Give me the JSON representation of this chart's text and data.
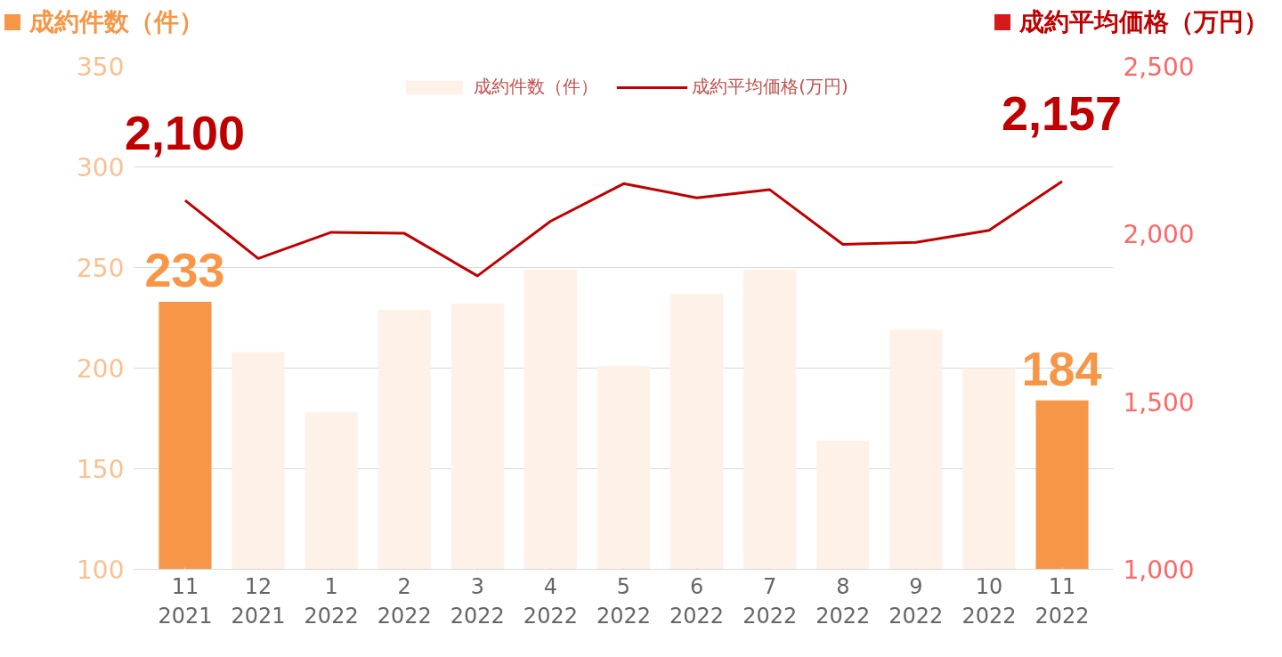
{
  "chart_data": {
    "type": "bar",
    "ylabel": "成約件数（件）",
    "y2label": "成約平均価格（万円）",
    "categories": [
      "11\n2021",
      "12\n2021",
      "1\n2022",
      "2\n2022",
      "3\n2022",
      "4\n2022",
      "5\n2022",
      "6\n2022",
      "7\n2022",
      "8\n2022",
      "9\n2022",
      "10\n2022",
      "11\n2022"
    ],
    "ylim": [
      100,
      350
    ],
    "yticks": [
      100,
      150,
      200,
      250,
      300,
      350
    ],
    "y2lim": [
      1000,
      2500
    ],
    "y2ticks": [
      {
        "value": 1000,
        "label": "1,000"
      },
      {
        "value": 1500,
        "label": "1,500"
      },
      {
        "value": 2000,
        "label": "2,000"
      },
      {
        "value": 2500,
        "label": "2,500"
      }
    ],
    "grid": "y",
    "legend": "top",
    "series": [
      {
        "name": "成約件数（件）",
        "type": "bar",
        "color": "#fdf1e8",
        "colors": [
          "#f79646",
          "#fdf1e8",
          "#fdf1e8",
          "#fdf1e8",
          "#fdf1e8",
          "#fdf1e8",
          "#fdf1e8",
          "#fdf1e8",
          "#fdf1e8",
          "#fdf1e8",
          "#fdf1e8",
          "#fdf1e8",
          "#f79646"
        ],
        "values": [
          233,
          208,
          178,
          229,
          232,
          249,
          201,
          237,
          249,
          164,
          219,
          200,
          184
        ],
        "value_labels": [
          "233",
          null,
          null,
          null,
          null,
          null,
          null,
          null,
          null,
          null,
          null,
          null,
          "184"
        ]
      },
      {
        "name": "成約平均価格(万円)",
        "type": "line",
        "axis": "y2",
        "color": "#c00000",
        "values": [
          2100,
          1927,
          2005,
          2002,
          1875,
          2038,
          2150,
          2108,
          2132,
          1969,
          1975,
          2011,
          2157
        ],
        "value_labels": [
          "2,100",
          null,
          null,
          null,
          null,
          null,
          null,
          null,
          null,
          null,
          null,
          null,
          "2,157"
        ]
      }
    ]
  }
}
